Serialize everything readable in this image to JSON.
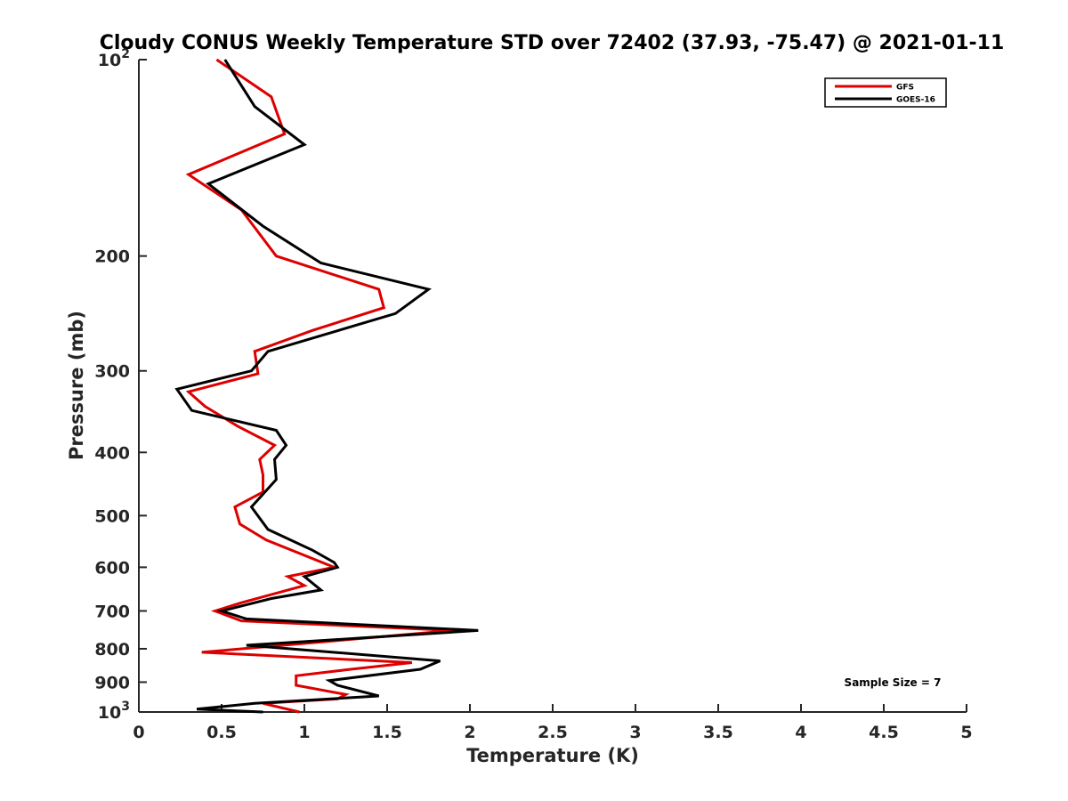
{
  "chart_data": {
    "type": "line",
    "title": "Cloudy CONUS Weekly Temperature STD over 72402 (37.93, -75.47) @ 2021-01-11",
    "xlabel": "Temperature (K)",
    "ylabel": "Pressure (mb)",
    "xlim": [
      0,
      5
    ],
    "ylim": [
      100,
      1000
    ],
    "y_scale": "log",
    "y_reversed": true,
    "grid": false,
    "legend_position": "top-right",
    "x_ticks": [
      0,
      0.5,
      1,
      1.5,
      2,
      2.5,
      3,
      3.5,
      4,
      4.5,
      5
    ],
    "x_tick_labels": [
      "0",
      "0.5",
      "1",
      "1.5",
      "2",
      "2.5",
      "3",
      "3.5",
      "4",
      "4.5",
      "5"
    ],
    "y_ticks": [
      100,
      200,
      300,
      400,
      500,
      600,
      700,
      800,
      900,
      1000
    ],
    "y_tick_labels": [
      {
        "base": "10",
        "exp": "2"
      },
      {
        "base": "200",
        "exp": ""
      },
      {
        "base": "300",
        "exp": ""
      },
      {
        "base": "400",
        "exp": ""
      },
      {
        "base": "500",
        "exp": ""
      },
      {
        "base": "600",
        "exp": ""
      },
      {
        "base": "700",
        "exp": ""
      },
      {
        "base": "800",
        "exp": ""
      },
      {
        "base": "900",
        "exp": ""
      },
      {
        "base": "10",
        "exp": "3"
      }
    ],
    "annotation": "Sample Size = 7",
    "series": [
      {
        "name": "GFS",
        "color": "#dd0000",
        "points": [
          [
            0.47,
            100
          ],
          [
            0.8,
            114
          ],
          [
            0.88,
            130
          ],
          [
            0.3,
            150
          ],
          [
            0.62,
            170
          ],
          [
            0.83,
            200
          ],
          [
            1.45,
            225
          ],
          [
            1.48,
            240
          ],
          [
            1.05,
            260
          ],
          [
            0.7,
            280
          ],
          [
            0.72,
            303
          ],
          [
            0.3,
            323
          ],
          [
            0.4,
            340
          ],
          [
            0.6,
            365
          ],
          [
            0.82,
            390
          ],
          [
            0.73,
            410
          ],
          [
            0.75,
            433
          ],
          [
            0.75,
            460
          ],
          [
            0.58,
            485
          ],
          [
            0.61,
            515
          ],
          [
            0.77,
            545
          ],
          [
            1.18,
            600
          ],
          [
            0.9,
            620
          ],
          [
            1.0,
            640
          ],
          [
            0.62,
            680
          ],
          [
            0.46,
            700
          ],
          [
            0.62,
            725
          ],
          [
            1.9,
            750
          ],
          [
            0.38,
            810
          ],
          [
            1.65,
            840
          ],
          [
            1.28,
            860
          ],
          [
            0.95,
            880
          ],
          [
            0.95,
            910
          ],
          [
            1.25,
            940
          ],
          [
            1.2,
            955
          ],
          [
            0.75,
            970
          ],
          [
            0.97,
            1000
          ]
        ]
      },
      {
        "name": "GOES-16",
        "color": "#000000",
        "points": [
          [
            0.52,
            100
          ],
          [
            0.7,
            118
          ],
          [
            1.0,
            135
          ],
          [
            0.42,
            155
          ],
          [
            0.75,
            180
          ],
          [
            1.1,
            205
          ],
          [
            1.75,
            225
          ],
          [
            1.55,
            245
          ],
          [
            0.78,
            280
          ],
          [
            0.68,
            300
          ],
          [
            0.23,
            320
          ],
          [
            0.32,
            345
          ],
          [
            0.83,
            370
          ],
          [
            0.89,
            390
          ],
          [
            0.82,
            410
          ],
          [
            0.83,
            440
          ],
          [
            0.68,
            485
          ],
          [
            0.78,
            525
          ],
          [
            1.05,
            565
          ],
          [
            1.18,
            590
          ],
          [
            1.2,
            600
          ],
          [
            1.0,
            620
          ],
          [
            1.1,
            650
          ],
          [
            0.8,
            670
          ],
          [
            0.5,
            700
          ],
          [
            0.65,
            720
          ],
          [
            2.05,
            750
          ],
          [
            1.35,
            770
          ],
          [
            0.65,
            790
          ],
          [
            1.82,
            835
          ],
          [
            1.7,
            860
          ],
          [
            1.15,
            895
          ],
          [
            1.2,
            910
          ],
          [
            1.45,
            945
          ],
          [
            0.7,
            970
          ],
          [
            0.35,
            990
          ],
          [
            0.75,
            1000
          ]
        ]
      }
    ]
  }
}
